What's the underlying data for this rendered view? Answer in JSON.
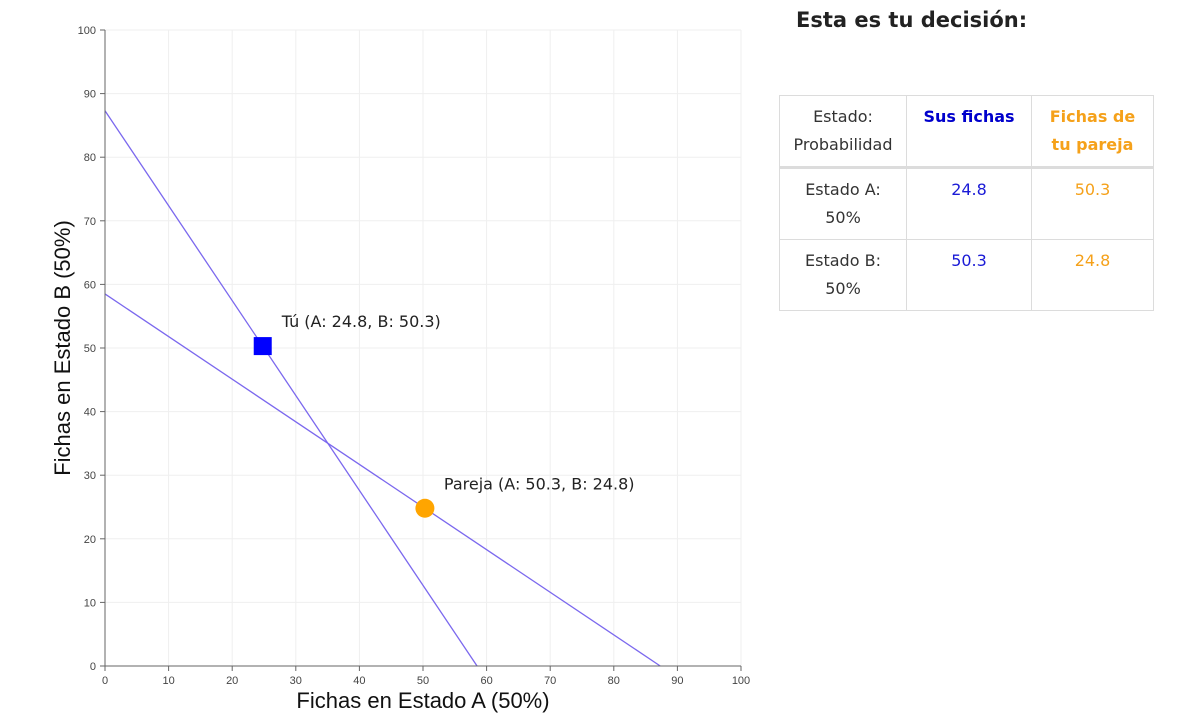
{
  "chart_data": {
    "type": "scatter",
    "title": "",
    "xlabel": "Fichas en Estado A (50%)",
    "ylabel": "Fichas en Estado B (50%)",
    "xlim": [
      0,
      100
    ],
    "ylim": [
      0,
      100
    ],
    "x_ticks": [
      "0",
      "10",
      "20",
      "30",
      "40",
      "50",
      "60",
      "70",
      "80",
      "90",
      "100"
    ],
    "y_ticks": [
      "0",
      "10",
      "20",
      "30",
      "40",
      "50",
      "60",
      "70",
      "80",
      "90",
      "100"
    ],
    "grid": true,
    "lines": [
      {
        "x": [
          0,
          58.5
        ],
        "y": [
          87.3,
          0
        ],
        "color": "#7b68ee"
      },
      {
        "x": [
          0,
          87.3
        ],
        "y": [
          58.5,
          0
        ],
        "color": "#7b68ee"
      }
    ],
    "points": [
      {
        "x": 24.8,
        "y": 50.3,
        "label": "Tú (A: 24.8, B: 50.3)",
        "marker": "square",
        "color": "#0000ff"
      },
      {
        "x": 50.3,
        "y": 24.8,
        "label": "Pareja (A: 50.3, B: 24.8)",
        "marker": "circle",
        "color": "#ffa500"
      }
    ]
  },
  "panel": {
    "title": "Esta es tu decisión:",
    "table": {
      "headers": {
        "state": "Estado: Probabilidad",
        "you": "Sus fichas",
        "partner": "Fichas de tu pareja"
      },
      "rows": [
        {
          "state": "Estado A: 50%",
          "you": "24.8",
          "partner": "50.3"
        },
        {
          "state": "Estado B: 50%",
          "you": "50.3",
          "partner": "24.8"
        }
      ]
    }
  },
  "colors": {
    "you": "#0000ff",
    "partner": "#ffa500",
    "budget_line": "#7b68ee"
  }
}
